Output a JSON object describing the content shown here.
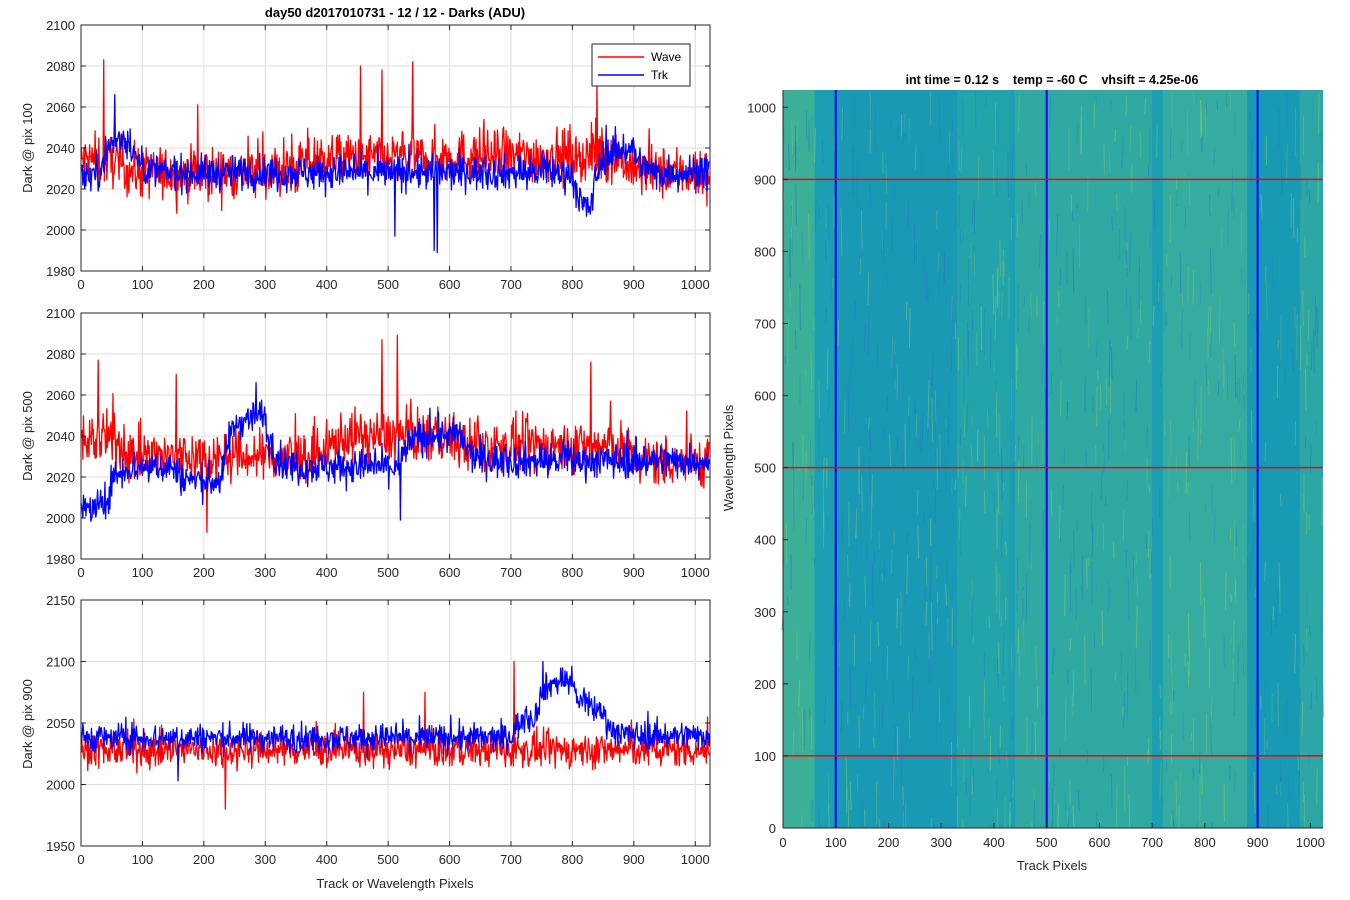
{
  "figure": {
    "colors": {
      "wave": "#ff0000",
      "trk": "#0000ff",
      "grid": "#dedede",
      "axis": "#262626",
      "image_base": "#1a9fb3",
      "image_hi": "#7fcf6a",
      "image_lo": "#1a7fc0"
    }
  },
  "chart_data": [
    {
      "type": "line",
      "title": "day50 d2017010731 - 12 / 12 - Darks (ADU)",
      "xlabel": "",
      "ylabel": "Dark @ pix 100",
      "xlim": [
        0,
        1024
      ],
      "ylim": [
        1980,
        2100
      ],
      "xticks": [
        0,
        100,
        200,
        300,
        400,
        500,
        600,
        700,
        800,
        900,
        1000
      ],
      "yticks": [
        1980,
        2000,
        2020,
        2040,
        2060,
        2080,
        2100
      ],
      "grid": true,
      "legend": {
        "placement": "top-right",
        "entries": [
          "Wave",
          "Trk"
        ]
      },
      "series": [
        {
          "name": "Wave",
          "color": "#ff0000",
          "baseline": 2030,
          "noise": 9,
          "spikes": [
            [
              37,
              2083
            ],
            [
              190,
              2061
            ],
            [
              455,
              2080
            ],
            [
              490,
              2078
            ],
            [
              540,
              2082
            ],
            [
              840,
              2073
            ]
          ],
          "segments": [
            [
              0,
              60,
              2034
            ],
            [
              80,
              350,
              2028
            ],
            [
              350,
              560,
              2035
            ],
            [
              560,
              880,
              2036
            ],
            [
              880,
              1024,
              2028
            ]
          ]
        },
        {
          "name": "Trk",
          "color": "#0000ff",
          "baseline": 2028,
          "noise": 6,
          "spikes": [
            [
              55,
              2066
            ],
            [
              511,
              1997
            ],
            [
              575,
              1990
            ],
            [
              580,
              1989
            ]
          ],
          "segments": [
            [
              0,
              30,
              2027
            ],
            [
              30,
              80,
              2045
            ],
            [
              80,
              800,
              2028
            ],
            [
              800,
              830,
              2008
            ],
            [
              830,
              900,
              2040
            ],
            [
              900,
              1024,
              2028
            ]
          ]
        }
      ]
    },
    {
      "type": "line",
      "title": "",
      "xlabel": "",
      "ylabel": "Dark @ pix 500",
      "xlim": [
        0,
        1024
      ],
      "ylim": [
        1980,
        2100
      ],
      "xticks": [
        0,
        100,
        200,
        300,
        400,
        500,
        600,
        700,
        800,
        900,
        1000
      ],
      "yticks": [
        1980,
        2000,
        2020,
        2040,
        2060,
        2080,
        2100
      ],
      "grid": true,
      "series": [
        {
          "name": "Wave",
          "color": "#ff0000",
          "baseline": 2030,
          "noise": 9,
          "spikes": [
            [
              28,
              2077
            ],
            [
              155,
              2070
            ],
            [
              205,
              1993
            ],
            [
              490,
              2087
            ],
            [
              515,
              2089
            ],
            [
              830,
              2076
            ]
          ],
          "segments": [
            [
              0,
              60,
              2038
            ],
            [
              60,
              400,
              2030
            ],
            [
              400,
              600,
              2040
            ],
            [
              600,
              880,
              2035
            ],
            [
              880,
              1024,
              2028
            ]
          ]
        },
        {
          "name": "Trk",
          "color": "#0000ff",
          "baseline": 2025,
          "noise": 6,
          "spikes": [
            [
              285,
              2066
            ],
            [
              520,
              1999
            ]
          ],
          "segments": [
            [
              0,
              40,
              2005
            ],
            [
              40,
              150,
              2025
            ],
            [
              150,
              230,
              2018
            ],
            [
              230,
              300,
              2050
            ],
            [
              300,
              520,
              2025
            ],
            [
              520,
              620,
              2040
            ],
            [
              620,
              1024,
              2028
            ]
          ]
        }
      ]
    },
    {
      "type": "line",
      "title": "",
      "xlabel": "Track or Wavelength Pixels",
      "ylabel": "Dark @ pix 900",
      "xlim": [
        0,
        1024
      ],
      "ylim": [
        1950,
        2150
      ],
      "xticks": [
        0,
        100,
        200,
        300,
        400,
        500,
        600,
        700,
        800,
        900,
        1000
      ],
      "yticks": [
        1950,
        2000,
        2050,
        2100,
        2150
      ],
      "grid": true,
      "series": [
        {
          "name": "Wave",
          "color": "#ff0000",
          "baseline": 2028,
          "noise": 10,
          "spikes": [
            [
              235,
              1980
            ],
            [
              705,
              2100
            ],
            [
              460,
              2075
            ],
            [
              560,
              2075
            ]
          ],
          "segments": [
            [
              0,
              1024,
              2028
            ]
          ]
        },
        {
          "name": "Trk",
          "color": "#0000ff",
          "baseline": 2038,
          "noise": 8,
          "spikes": [
            [
              752,
              2100
            ],
            [
              158,
              2003
            ]
          ],
          "segments": [
            [
              0,
              700,
              2038
            ],
            [
              700,
              740,
              2055
            ],
            [
              740,
              800,
              2085
            ],
            [
              800,
              850,
              2060
            ],
            [
              850,
              1024,
              2040
            ]
          ]
        }
      ]
    },
    {
      "type": "heatmap",
      "title": "int time = 0.12 s    temp = -60 C    vhsift = 4.25e-06",
      "xlabel": "Track Pixels",
      "ylabel": "Wavelength Pixels",
      "xlim": [
        0,
        1024
      ],
      "ylim": [
        0,
        1024
      ],
      "xticks": [
        0,
        100,
        200,
        300,
        400,
        500,
        600,
        700,
        800,
        900,
        1000
      ],
      "yticks": [
        0,
        100,
        200,
        300,
        400,
        500,
        600,
        700,
        800,
        900,
        1000
      ],
      "vertical_lines": {
        "color": "#0000ff",
        "x": [
          100,
          500,
          900
        ]
      },
      "horizontal_lines": {
        "color": "#ff0000",
        "y": [
          100,
          500,
          900
        ]
      }
    }
  ]
}
